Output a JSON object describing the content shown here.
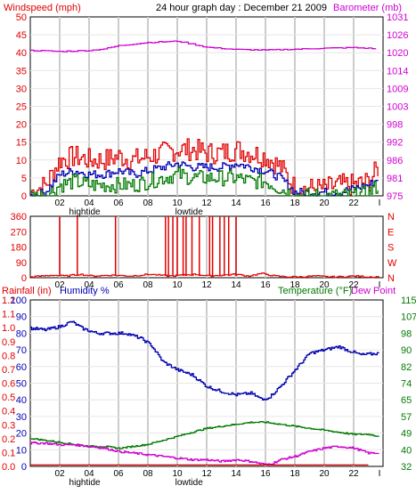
{
  "header": {
    "left_label": "Windspeed (mph)",
    "title": "24 hour graph day : December 21 2009",
    "right_label": "Barometer (mb)"
  },
  "colors": {
    "red": "#e00000",
    "green": "#007a00",
    "blue": "#0000b0",
    "magenta": "#d000d0",
    "grid": "#cccccc",
    "axis": "#000000"
  },
  "chart_data": [
    {
      "type": "line",
      "name": "wind-barometer",
      "x_ticks": [
        "02",
        "04",
        "06",
        "08",
        "10",
        "12",
        "14",
        "16",
        "18",
        "20",
        "22"
      ],
      "x_end_label": "I",
      "tide_labels": [
        {
          "text": "hightide",
          "x": 3.7
        },
        {
          "text": "lowtide",
          "x": 10.8
        }
      ],
      "y_left": {
        "label": "Windspeed (mph)",
        "ticks": [
          0,
          5,
          10,
          15,
          20,
          25,
          30,
          35,
          40,
          45,
          50
        ],
        "range": [
          0,
          50
        ]
      },
      "y_right": {
        "label": "Barometer (mb)",
        "ticks": [
          975,
          981,
          986,
          992,
          998,
          1003,
          1009,
          1014,
          1020,
          1026,
          1031
        ],
        "range": [
          975,
          1031
        ]
      },
      "series": [
        {
          "color": "red",
          "x": [
            0,
            1,
            2,
            3,
            4,
            5,
            6,
            7,
            8,
            9,
            10,
            11,
            12,
            13,
            14,
            15,
            16,
            17,
            18,
            19,
            20,
            21,
            22,
            23,
            23.7
          ],
          "values": [
            1,
            3,
            10,
            11,
            10,
            10,
            11,
            10,
            11,
            12,
            13,
            13,
            12,
            12,
            13,
            12,
            11,
            8,
            2,
            2,
            2,
            3,
            3,
            4,
            8
          ]
        },
        {
          "color": "blue",
          "x": [
            0,
            1,
            2,
            3,
            4,
            5,
            6,
            7,
            8,
            9,
            10,
            11,
            12,
            13,
            14,
            15,
            16,
            17,
            18,
            19,
            20,
            21,
            22,
            23,
            23.7
          ],
          "values": [
            0,
            1,
            6,
            7,
            6,
            6,
            7,
            6,
            7,
            8,
            9,
            8,
            8,
            8,
            9,
            8,
            7,
            5,
            1,
            1,
            1,
            1,
            2,
            3,
            5
          ]
        },
        {
          "color": "green",
          "x": [
            0,
            1,
            2,
            3,
            4,
            5,
            6,
            7,
            8,
            9,
            10,
            11,
            12,
            13,
            14,
            15,
            16,
            17,
            18,
            19,
            20,
            21,
            22,
            23,
            23.7
          ],
          "values": [
            0,
            0,
            3,
            4,
            3,
            3,
            3,
            3,
            4,
            5,
            6,
            5,
            5,
            5,
            5,
            4,
            4,
            2,
            0,
            0,
            0,
            0,
            0,
            1,
            3
          ]
        },
        {
          "color": "magenta",
          "axis": "right",
          "x": [
            0,
            2,
            4,
            5,
            6,
            8,
            10,
            11,
            12,
            14,
            16,
            18,
            20,
            22,
            23.7
          ],
          "values": [
            1020.5,
            1020.2,
            1020.5,
            1021,
            1022,
            1023,
            1023.4,
            1022.5,
            1021.5,
            1020.8,
            1020.6,
            1020.9,
            1021.2,
            1021.4,
            1021
          ]
        }
      ]
    },
    {
      "type": "line",
      "name": "wind-direction",
      "x_ticks": [
        "02",
        "04",
        "06",
        "08",
        "10",
        "12",
        "14",
        "16",
        "18",
        "20",
        "22"
      ],
      "x_end_label": "I",
      "y_left": {
        "ticks": [
          0,
          90,
          180,
          270,
          360
        ],
        "range": [
          0,
          360
        ]
      },
      "y_right": {
        "ticks": [
          "N",
          "W",
          "S",
          "E",
          "N"
        ]
      },
      "series": [
        {
          "color": "red",
          "x": [
            0,
            1.5,
            2.4,
            3.3,
            4.2,
            5.5,
            6.8,
            8.1,
            9.4,
            10.3,
            11.2,
            12.1,
            13.0,
            13.9,
            14.8,
            15.7,
            16.6,
            17.5,
            18.4,
            19.3,
            20.2,
            21.1,
            22.0,
            22.9,
            23.7
          ],
          "values": [
            5,
            15,
            10,
            20,
            10,
            15,
            10,
            20,
            10,
            15,
            20,
            10,
            15,
            20,
            10,
            25,
            10,
            5,
            5,
            10,
            5,
            5,
            10,
            5,
            5
          ],
          "spikes": [
            2.0,
            3.2,
            5.8,
            9.2,
            9.4,
            9.7,
            10.0,
            10.4,
            10.6,
            11.0,
            11.5,
            12.2,
            12.4,
            12.9,
            13.2,
            13.5,
            14.0
          ]
        }
      ]
    },
    {
      "type": "line",
      "name": "rain-humidity-temperature",
      "legend": [
        "Rainfall (in)",
        "Humidity %",
        "Temperature (°F)",
        "Dew Point"
      ],
      "x_ticks": [
        "02",
        "04",
        "06",
        "08",
        "10",
        "12",
        "14",
        "16",
        "18",
        "20",
        "22"
      ],
      "x_end_label": "I",
      "tide_labels": [
        {
          "text": "hightide",
          "x": 3.7
        },
        {
          "text": "lowtide",
          "x": 10.8
        }
      ],
      "y_rain": {
        "ticks": [
          0.0,
          0.1,
          0.2,
          0.3,
          0.4,
          0.5,
          0.6,
          0.7,
          0.8,
          0.9,
          1.0,
          1.1,
          1.2
        ]
      },
      "y_humidity": {
        "ticks": [
          0,
          10,
          20,
          30,
          40,
          50,
          60,
          70,
          80,
          90,
          100
        ],
        "range": [
          0,
          100
        ]
      },
      "y_temp": {
        "ticks": [
          32,
          40,
          49,
          57,
          65,
          74,
          82,
          90,
          98,
          107,
          115
        ],
        "range": [
          32,
          115
        ]
      },
      "series": [
        {
          "color": "blue",
          "name": "Humidity %",
          "x": [
            0,
            1,
            2,
            2.8,
            3.5,
            4.5,
            5.5,
            6.5,
            7.5,
            8.2,
            9,
            10,
            11,
            12,
            13,
            14,
            15,
            15.8,
            16.3,
            17,
            18,
            19,
            20,
            21,
            21.5,
            22.5,
            23.7
          ],
          "values": [
            83,
            82,
            84,
            87,
            83,
            80,
            80,
            80,
            77,
            73,
            63,
            58,
            55,
            48,
            45,
            43,
            44,
            40,
            42,
            48,
            58,
            68,
            70,
            72,
            70,
            67,
            68
          ]
        },
        {
          "color": "green",
          "name": "Temperature (°F)",
          "x": [
            0,
            1,
            2,
            3,
            4,
            5,
            6,
            7,
            8,
            9,
            10,
            11,
            12,
            13,
            14,
            15,
            16,
            17,
            18,
            19,
            20,
            21,
            22,
            23,
            23.7
          ],
          "values": [
            46,
            45,
            44,
            43,
            42,
            42,
            41,
            42,
            43,
            45,
            47,
            49,
            51,
            52,
            53,
            54,
            54,
            53,
            52,
            51,
            50,
            49,
            48,
            48,
            47
          ]
        },
        {
          "color": "magenta",
          "name": "Dew Point",
          "x": [
            0,
            1,
            2,
            3,
            4,
            5,
            6,
            7,
            8,
            9,
            10,
            11,
            12,
            13,
            14,
            15,
            15.5,
            16,
            16.5,
            17,
            18,
            19,
            20,
            21,
            22,
            23,
            23.7
          ],
          "values": [
            14,
            14,
            13,
            13,
            12,
            11,
            9,
            8,
            7,
            6,
            5,
            4,
            4,
            3,
            4,
            3,
            2,
            1,
            2,
            4,
            6,
            9,
            11,
            12,
            11,
            8,
            8
          ]
        },
        {
          "color": "red",
          "name": "Rainfall (in)",
          "x": [
            0,
            23.7
          ],
          "values": [
            0.01,
            0.01
          ]
        }
      ]
    }
  ]
}
